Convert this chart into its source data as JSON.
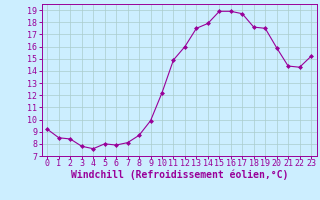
{
  "x": [
    0,
    1,
    2,
    3,
    4,
    5,
    6,
    7,
    8,
    9,
    10,
    11,
    12,
    13,
    14,
    15,
    16,
    17,
    18,
    19,
    20,
    21,
    22,
    23
  ],
  "y": [
    9.2,
    8.5,
    8.4,
    7.8,
    7.6,
    8.0,
    7.9,
    8.1,
    8.7,
    9.9,
    12.2,
    14.9,
    16.0,
    17.5,
    17.9,
    18.9,
    18.9,
    18.7,
    17.6,
    17.5,
    15.9,
    14.4,
    14.3,
    15.2
  ],
  "line_color": "#990099",
  "marker": "D",
  "marker_size": 2.0,
  "bg_color": "#cceeff",
  "grid_color": "#aacccc",
  "xlabel": "Windchill (Refroidissement éolien,°C)",
  "xlabel_color": "#990099",
  "tick_color": "#990099",
  "xlabel_fontsize": 7,
  "tick_fontsize": 6,
  "ylim": [
    7,
    19.5
  ],
  "xlim": [
    -0.5,
    23.5
  ],
  "yticks": [
    7,
    8,
    9,
    10,
    11,
    12,
    13,
    14,
    15,
    16,
    17,
    18,
    19
  ],
  "xticks": [
    0,
    1,
    2,
    3,
    4,
    5,
    6,
    7,
    8,
    9,
    10,
    11,
    12,
    13,
    14,
    15,
    16,
    17,
    18,
    19,
    20,
    21,
    22,
    23
  ]
}
